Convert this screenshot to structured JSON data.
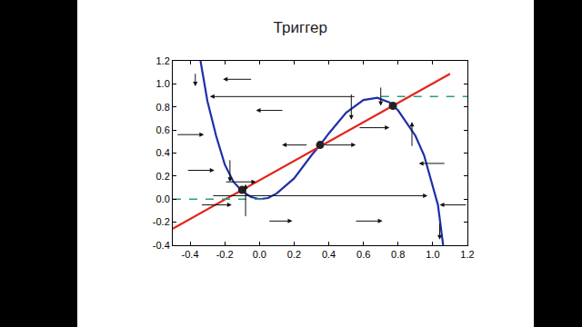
{
  "chart_data": {
    "type": "line",
    "title": "Триггер",
    "xlim": [
      -0.5,
      1.2
    ],
    "ylim": [
      -0.4,
      1.2
    ],
    "xticks": [
      -0.4,
      -0.2,
      {
        "value": 0,
        "label": "0.0"
      },
      0.2,
      0.4,
      0.6,
      0.8,
      {
        "value": 1,
        "label": "1.0"
      },
      1.2
    ],
    "yticks": [
      -0.4,
      -0.2,
      {
        "value": 0,
        "label": "0.0"
      },
      0.2,
      0.4,
      0.6,
      0.8,
      {
        "value": 1,
        "label": "1.0"
      },
      1.2
    ],
    "grid": false,
    "series": [
      {
        "type": "line",
        "color": "#1f2fa8",
        "line_style": "solid",
        "x": [
          -0.34,
          -0.3,
          -0.25,
          -0.2,
          -0.15,
          -0.1,
          -0.05,
          0,
          0.05,
          0.1,
          0.2,
          0.3,
          0.35,
          0.4,
          0.5,
          0.6,
          0.68,
          0.75,
          0.8,
          0.9,
          0.95,
          1.0,
          1.03,
          1.06
        ],
        "values": [
          1.2,
          0.85,
          0.55,
          0.3,
          0.15,
          0.07,
          0.02,
          0,
          0.01,
          0.05,
          0.18,
          0.38,
          0.47,
          0.57,
          0.75,
          0.86,
          0.88,
          0.84,
          0.77,
          0.55,
          0.38,
          0.12,
          -0.05,
          -0.4
        ]
      },
      {
        "type": "line",
        "color": "#e3241b",
        "line_style": "solid",
        "x": [
          -0.5,
          1.1
        ],
        "values": [
          -0.256,
          1.088
        ]
      },
      {
        "type": "line",
        "color": "#2a9d7a",
        "line_style": "dashed",
        "x": [
          -0.5,
          0.05
        ],
        "values": [
          0,
          0
        ]
      },
      {
        "type": "line",
        "color": "#2a9d7a",
        "line_style": "dashed",
        "x": [
          0.7,
          1.2
        ],
        "values": [
          0.89,
          0.89
        ]
      },
      {
        "type": "scatter",
        "color": "#222222",
        "marker": "circle",
        "x": [
          -0.1,
          0.35,
          0.77
        ],
        "values": [
          0.08,
          0.47,
          0.81
        ]
      }
    ],
    "arrows": [
      {
        "x": [
          -0.04,
          -0.21
        ],
        "y": [
          1.04,
          1.04
        ]
      },
      {
        "x": [
          0.556,
          -0.286
        ],
        "y": [
          0.89,
          0.89
        ]
      },
      {
        "x": [
          0.14,
          -0.02
        ],
        "y": [
          0.77,
          0.77
        ]
      },
      {
        "x": [
          -0.48,
          -0.32
        ],
        "y": [
          0.56,
          0.56
        ]
      },
      {
        "x": [
          0.28,
          0.13
        ],
        "y": [
          0.47,
          0.47
        ]
      },
      {
        "x": [
          0.37,
          0.556
        ],
        "y": [
          0.47,
          0.47
        ]
      },
      {
        "x": [
          0.57,
          0.75
        ],
        "y": [
          0.62,
          0.62
        ]
      },
      {
        "x": [
          1.075,
          0.92
        ],
        "y": [
          0.31,
          0.31
        ]
      },
      {
        "x": [
          -0.42,
          -0.26
        ],
        "y": [
          0.25,
          0.25
        ]
      },
      {
        "x": [
          -0.2,
          -0.02
        ],
        "y": [
          0.15,
          0.15
        ]
      },
      {
        "x": [
          -0.275,
          0.97
        ],
        "y": [
          0.03,
          0.03
        ]
      },
      {
        "x": [
          -0.34,
          -0.16
        ],
        "y": [
          -0.05,
          -0.05
        ]
      },
      {
        "x": [
          1.2,
          1.04
        ],
        "y": [
          -0.05,
          -0.05
        ]
      },
      {
        "x": [
          0.05,
          0.19
        ],
        "y": [
          -0.19,
          -0.19
        ]
      },
      {
        "x": [
          0.55,
          0.71
        ],
        "y": [
          -0.19,
          -0.19
        ]
      },
      {
        "x": [
          -0.17,
          -0.17
        ],
        "y": [
          0.35,
          0.15
        ]
      },
      {
        "x": [
          -0.08,
          -0.08
        ],
        "y": [
          -0.16,
          0.13
        ]
      },
      {
        "x": [
          0.53,
          0.53
        ],
        "y": [
          0.92,
          0.69
        ]
      },
      {
        "x": [
          0.88,
          0.88
        ],
        "y": [
          0.45,
          0.67
        ]
      },
      {
        "x": [
          0.7,
          0.7
        ],
        "y": [
          0.98,
          0.81
        ]
      },
      {
        "x": [
          -0.37,
          -0.37
        ],
        "y": [
          1.1,
          0.98
        ]
      },
      {
        "x": [
          1.04,
          1.04
        ],
        "y": [
          -0.2,
          -0.35
        ]
      }
    ]
  }
}
